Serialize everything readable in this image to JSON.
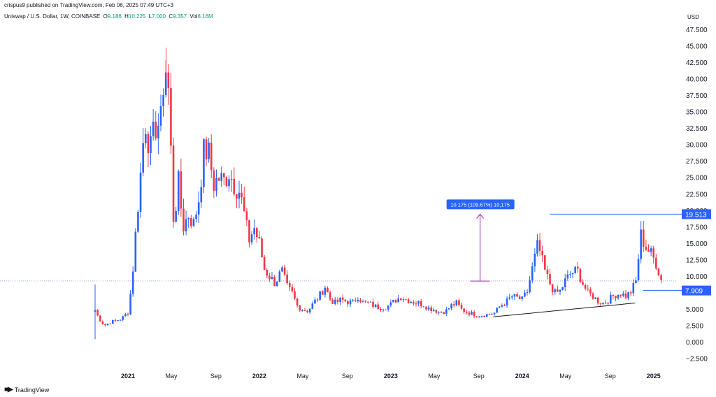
{
  "header": {
    "published": "crispus9 published on TradingView.com, Feb 06, 2025 07:49 UTC+3",
    "symbol": "Uniswap / U.S. Dollar, 1W, COINBASE",
    "ohlc": [
      {
        "k": "O",
        "v": "9.186"
      },
      {
        "k": "H",
        "v": "10.225"
      },
      {
        "k": "L",
        "v": "7.000"
      },
      {
        "k": "C",
        "v": "9.357"
      },
      {
        "k": "Vol",
        "v": "8.16M"
      }
    ]
  },
  "currency": "USD",
  "footer": {
    "brand": "TradingView",
    "logo": "tradingview-logo-icon"
  },
  "colors": {
    "up": "#2962ff",
    "down": "#f23645",
    "measure": "#9c27b0",
    "level_line": "#2962ff",
    "trendline": "#131722",
    "price_line": "#90a4c8"
  },
  "chart_data": {
    "type": "candlestick",
    "title": "Uniswap / U.S. Dollar, 1W, COINBASE",
    "ylabel": "USD",
    "ylim": [
      -4,
      50
    ],
    "xlim": [
      2020.72,
      2025.12
    ],
    "y_ticks": [
      "47.500",
      "45.000",
      "42.500",
      "40.000",
      "37.500",
      "35.000",
      "32.500",
      "30.000",
      "27.500",
      "25.000",
      "22.500",
      "20.000",
      "17.500",
      "15.000",
      "12.500",
      "10.000",
      "7.500",
      "5.000",
      "2.500",
      "0.000",
      "−2.500"
    ],
    "y_tick_values": [
      47.5,
      45,
      42.5,
      40,
      37.5,
      35,
      32.5,
      30,
      27.5,
      25,
      22.5,
      20,
      17.5,
      15,
      12.5,
      10,
      7.5,
      5,
      2.5,
      0,
      -2.5
    ],
    "x_ticks": [
      {
        "label": "2021",
        "x": 2021.0,
        "bold": true
      },
      {
        "label": "May",
        "x": 2021.33
      },
      {
        "label": "Sep",
        "x": 2021.67
      },
      {
        "label": "2022",
        "x": 2022.0,
        "bold": true
      },
      {
        "label": "May",
        "x": 2022.33
      },
      {
        "label": "Sep",
        "x": 2022.67
      },
      {
        "label": "2023",
        "x": 2023.0,
        "bold": true
      },
      {
        "label": "May",
        "x": 2023.33
      },
      {
        "label": "Sep",
        "x": 2023.67
      },
      {
        "label": "2024",
        "x": 2024.0,
        "bold": true
      },
      {
        "label": "May",
        "x": 2024.33
      },
      {
        "label": "Sep",
        "x": 2024.67
      },
      {
        "label": "2025",
        "x": 2025.0,
        "bold": true
      }
    ],
    "price_line": 9.357,
    "current_price_label": "9.357",
    "levels": [
      {
        "value": 19.513,
        "label": "19.513",
        "x_start": 2024.21
      },
      {
        "value": 7.909,
        "label": "7.909",
        "x_start": 2024.92
      }
    ],
    "measure": {
      "x": 2023.68,
      "from": 9.338,
      "to": 19.513,
      "label": "10.175 (109.67%) 10,175"
    },
    "trendline": {
      "x1": 2023.78,
      "y1": 3.9,
      "x2": 2024.86,
      "y2": 6.0
    },
    "anchors": [
      [
        2020.75,
        4.9
      ],
      [
        2020.78,
        3.6
      ],
      [
        2020.82,
        2.6
      ],
      [
        2020.88,
        3.2
      ],
      [
        2020.95,
        3.6
      ],
      [
        2021.0,
        4.6
      ],
      [
        2021.03,
        9.0
      ],
      [
        2021.06,
        17.0
      ],
      [
        2021.1,
        26.5
      ],
      [
        2021.13,
        34.0
      ],
      [
        2021.17,
        29.0
      ],
      [
        2021.21,
        33.0
      ],
      [
        2021.25,
        33.5
      ],
      [
        2021.28,
        43.0
      ],
      [
        2021.31,
        38.0
      ],
      [
        2021.35,
        17.0
      ],
      [
        2021.38,
        25.0
      ],
      [
        2021.42,
        17.5
      ],
      [
        2021.46,
        19.5
      ],
      [
        2021.5,
        18.0
      ],
      [
        2021.54,
        22.0
      ],
      [
        2021.58,
        29.5
      ],
      [
        2021.62,
        28.5
      ],
      [
        2021.65,
        24.0
      ],
      [
        2021.69,
        25.0
      ],
      [
        2021.73,
        24.5
      ],
      [
        2021.77,
        26.0
      ],
      [
        2021.81,
        24.0
      ],
      [
        2021.85,
        23.0
      ],
      [
        2021.88,
        20.0
      ],
      [
        2021.92,
        15.5
      ],
      [
        2021.96,
        17.5
      ],
      [
        2022.0,
        15.0
      ],
      [
        2022.04,
        11.0
      ],
      [
        2022.08,
        10.0
      ],
      [
        2022.12,
        9.0
      ],
      [
        2022.17,
        11.0
      ],
      [
        2022.21,
        8.5
      ],
      [
        2022.25,
        7.5
      ],
      [
        2022.29,
        5.5
      ],
      [
        2022.33,
        5.0
      ],
      [
        2022.37,
        4.8
      ],
      [
        2022.42,
        6.2
      ],
      [
        2022.46,
        7.2
      ],
      [
        2022.5,
        8.5
      ],
      [
        2022.54,
        6.5
      ],
      [
        2022.58,
        6.0
      ],
      [
        2022.62,
        6.5
      ],
      [
        2022.67,
        6.2
      ],
      [
        2022.71,
        6.0
      ],
      [
        2022.75,
        7.0
      ],
      [
        2022.79,
        6.0
      ],
      [
        2022.83,
        6.0
      ],
      [
        2022.88,
        5.5
      ],
      [
        2022.92,
        5.3
      ],
      [
        2022.96,
        5.4
      ],
      [
        2023.0,
        5.8
      ],
      [
        2023.04,
        6.5
      ],
      [
        2023.08,
        7.0
      ],
      [
        2023.12,
        6.5
      ],
      [
        2023.17,
        6.2
      ],
      [
        2023.21,
        6.0
      ],
      [
        2023.25,
        5.7
      ],
      [
        2023.29,
        5.2
      ],
      [
        2023.33,
        5.0
      ],
      [
        2023.37,
        4.6
      ],
      [
        2023.42,
        4.8
      ],
      [
        2023.46,
        5.6
      ],
      [
        2023.5,
        6.0
      ],
      [
        2023.54,
        5.0
      ],
      [
        2023.58,
        4.6
      ],
      [
        2023.63,
        4.3
      ],
      [
        2023.67,
        4.1
      ],
      [
        2023.71,
        4.2
      ],
      [
        2023.75,
        4.3
      ],
      [
        2023.79,
        4.5
      ],
      [
        2023.83,
        5.5
      ],
      [
        2023.88,
        6.2
      ],
      [
        2023.92,
        7.0
      ],
      [
        2023.96,
        6.8
      ],
      [
        2024.0,
        6.5
      ],
      [
        2024.04,
        7.8
      ],
      [
        2024.08,
        11.5
      ],
      [
        2024.12,
        15.0
      ],
      [
        2024.17,
        11.0
      ],
      [
        2024.21,
        9.0
      ],
      [
        2024.25,
        7.5
      ],
      [
        2024.29,
        7.8
      ],
      [
        2024.33,
        9.5
      ],
      [
        2024.37,
        10.5
      ],
      [
        2024.42,
        11.0
      ],
      [
        2024.46,
        9.0
      ],
      [
        2024.5,
        7.5
      ],
      [
        2024.54,
        7.0
      ],
      [
        2024.58,
        6.2
      ],
      [
        2024.62,
        6.0
      ],
      [
        2024.66,
        6.5
      ],
      [
        2024.7,
        7.2
      ],
      [
        2024.75,
        7.5
      ],
      [
        2024.79,
        7.0
      ],
      [
        2024.83,
        7.8
      ],
      [
        2024.87,
        9.5
      ],
      [
        2024.9,
        16.5
      ],
      [
        2024.94,
        14.5
      ],
      [
        2024.98,
        13.5
      ],
      [
        2025.02,
        12.0
      ],
      [
        2025.06,
        9.36
      ]
    ]
  }
}
